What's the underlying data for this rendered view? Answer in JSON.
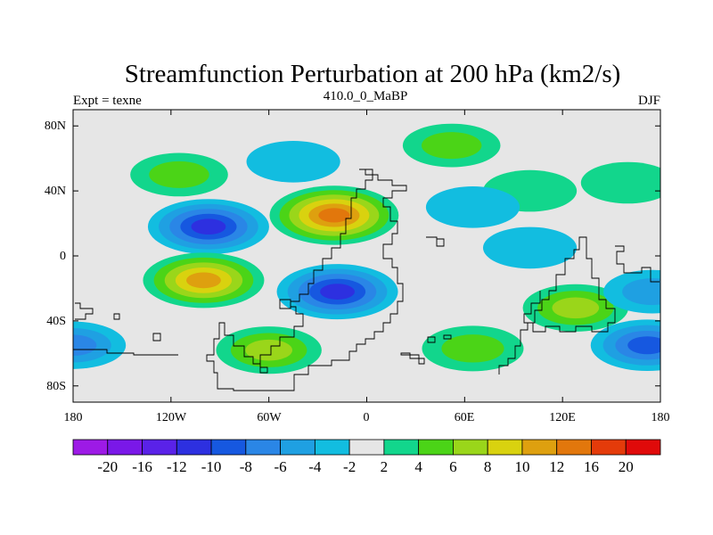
{
  "chart_data": {
    "type": "filled-contour-map",
    "title": "Streamfunction Perturbation at 200 hPa (km2/s)",
    "left_label": "Expt = texne",
    "center_label": "410.0_0_MaBP",
    "right_label": "DJF",
    "x_ticks": [
      "180",
      "120W",
      "60W",
      "0",
      "60E",
      "120E",
      "180"
    ],
    "y_ticks": [
      "80N",
      "40N",
      "0",
      "40S",
      "80S"
    ],
    "lon_range": [
      -180,
      180
    ],
    "lat_range": [
      -90,
      90
    ],
    "missing_color": "#e6e6e6",
    "colorbar": {
      "labels": [
        "-20",
        "-16",
        "-12",
        "-10",
        "-8",
        "-6",
        "-4",
        "-2",
        "2",
        "4",
        "6",
        "8",
        "10",
        "12",
        "16",
        "20"
      ],
      "colors": [
        "#9d1ae6",
        "#7a18e8",
        "#5a22e8",
        "#2d30e0",
        "#1658e0",
        "#2a86e6",
        "#1fa0e2",
        "#12bde0",
        "#e6e6e6",
        "#12d68c",
        "#4bd417",
        "#9ad61a",
        "#d9d20f",
        "#dea00f",
        "#e2770c",
        "#e43b0a",
        "#e00a0a"
      ]
    },
    "anomalies": [
      {
        "name": "n-atlantic-high",
        "lon": -20,
        "lat": 25,
        "value": 12
      },
      {
        "name": "s-atlantic-low",
        "lon": -18,
        "lat": -22,
        "value": -10
      },
      {
        "name": "ne-pacific-low",
        "lon": -97,
        "lat": 18,
        "value": -10
      },
      {
        "name": "se-pacific-high",
        "lon": -100,
        "lat": -15,
        "value": 10
      },
      {
        "name": "australia-high",
        "lon": 128,
        "lat": -32,
        "value": 6
      },
      {
        "name": "s-pacific-low",
        "lon": 172,
        "lat": -55,
        "value": -8
      },
      {
        "name": "sw-pacific-low",
        "lon": -180,
        "lat": -55,
        "value": -6
      },
      {
        "name": "s-ocean-band",
        "lon": -60,
        "lat": -58,
        "value": 6
      },
      {
        "name": "s-atlantic-band",
        "lon": 65,
        "lat": -57,
        "value": 5
      },
      {
        "name": "arctic-high",
        "lon": 52,
        "lat": 68,
        "value": 4
      },
      {
        "name": "pacific-40n-high",
        "lon": -115,
        "lat": 50,
        "value": 4
      },
      {
        "name": "mid-lat-asia-high",
        "lon": 100,
        "lat": 40,
        "value": 3
      },
      {
        "name": "n-hemisphere-low",
        "lon": -45,
        "lat": 58,
        "value": -3
      },
      {
        "name": "w-pacific-band-low",
        "lon": 65,
        "lat": 30,
        "value": -3
      },
      {
        "name": "e-pacific-n-high",
        "lon": 160,
        "lat": 45,
        "value": 3
      },
      {
        "name": "indian-ocean-low",
        "lon": 100,
        "lat": 5,
        "value": -3
      },
      {
        "name": "e-pacific-low",
        "lon": 175,
        "lat": -22,
        "value": -4
      }
    ]
  }
}
